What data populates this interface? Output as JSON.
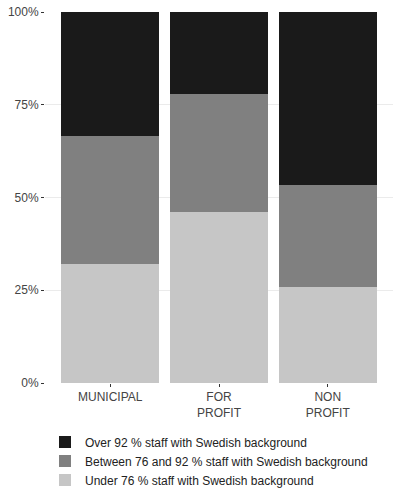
{
  "chart_data": {
    "type": "bar",
    "categories": [
      "MUNICIPAL",
      "FOR\nPROFIT",
      "NON\nPROFIT"
    ],
    "series": [
      {
        "name": "Under 76 % staff with Swedish background",
        "color": "#c6c6c6",
        "values": [
          32,
          46,
          26
        ]
      },
      {
        "name": "Between 76 and 92 % staff with Swedish background",
        "color": "#808080",
        "values": [
          34.5,
          32,
          27.5
        ]
      },
      {
        "name": "Over 92 % staff with Swedish background",
        "color": "#1a1a1a",
        "values": [
          33.5,
          22,
          46.5
        ]
      }
    ],
    "ylim": [
      0,
      100
    ],
    "yticks": [
      {
        "value": 0,
        "label": "0%"
      },
      {
        "value": 25,
        "label": "25%"
      },
      {
        "value": 50,
        "label": "50%"
      },
      {
        "value": 75,
        "label": "75%"
      },
      {
        "value": 100,
        "label": "100%"
      }
    ],
    "stacked": true,
    "grid": true,
    "legend": "bottom"
  }
}
